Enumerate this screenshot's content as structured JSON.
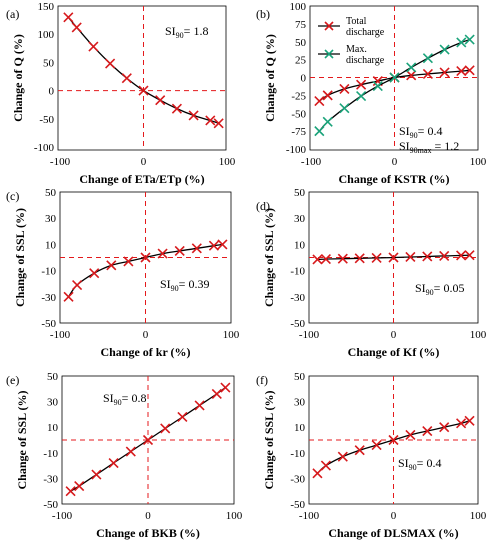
{
  "chart_data": [
    {
      "id": "a",
      "panel_label": "(a)",
      "type": "line",
      "xlabel": "Change of ETa/ETp (%)",
      "ylabel": "Change of Q (%)",
      "xlim": [
        -100,
        100
      ],
      "ylim": [
        -100,
        150
      ],
      "x_ticks": [
        "-100",
        "0",
        "100"
      ],
      "y_ticks": [
        "150",
        "100",
        "50",
        "0",
        "-50",
        "-100"
      ],
      "annotations": [
        {
          "text": "SI",
          "sub": "90",
          "rest": "= 1.8"
        }
      ],
      "series": [
        {
          "marker_color": "#d7191c",
          "line_color": "#000000",
          "x": [
            -90,
            -80,
            -60,
            -40,
            -20,
            0,
            20,
            40,
            60,
            80,
            90
          ],
          "y": [
            130,
            112,
            78,
            48,
            22,
            0,
            -17,
            -32,
            -44,
            -53,
            -58
          ]
        }
      ]
    },
    {
      "id": "b",
      "panel_label": "(b)",
      "type": "line",
      "xlabel": "Change of KSTR (%)",
      "ylabel": "Change of Q (%)",
      "xlim": [
        -100,
        100
      ],
      "ylim": [
        -100,
        100
      ],
      "x_ticks": [
        "-100",
        "0",
        "100"
      ],
      "y_ticks": [
        "100",
        "75",
        "50",
        "25",
        "0",
        "-25",
        "-50",
        "-75",
        "-100"
      ],
      "annotations": [
        {
          "text": "SI",
          "sub": "90",
          "rest": "= 0.4"
        },
        {
          "text": "SI",
          "sub": "90max",
          "rest": " = 1.2"
        }
      ],
      "legend": [
        "Total\ndischarge",
        "Max.\ndischarge"
      ],
      "series": [
        {
          "name": "Total discharge",
          "marker_color": "#d7191c",
          "line_color": "#000000",
          "x": [
            -90,
            -80,
            -60,
            -40,
            -20,
            0,
            20,
            40,
            60,
            80,
            90
          ],
          "y": [
            -33,
            -25,
            -16,
            -10,
            -5,
            0,
            3,
            5,
            7,
            9,
            10
          ]
        },
        {
          "name": "Max. discharge",
          "marker_color": "#1aa37a",
          "line_color": "#000000",
          "x": [
            -90,
            -80,
            -60,
            -40,
            -20,
            0,
            20,
            40,
            60,
            80,
            90
          ],
          "y": [
            -75,
            -62,
            -43,
            -26,
            -12,
            0,
            14,
            27,
            39,
            49,
            53
          ]
        }
      ]
    },
    {
      "id": "c",
      "panel_label": "(c)",
      "type": "line",
      "xlabel": "Change of kr (%)",
      "ylabel": "Change of SSL (%)",
      "xlim": [
        -100,
        100
      ],
      "ylim": [
        -50,
        50
      ],
      "x_ticks": [
        "-100",
        "0",
        "100"
      ],
      "y_ticks": [
        "50",
        "30",
        "10",
        "-10",
        "-30",
        "-50"
      ],
      "annotations": [
        {
          "text": "SI",
          "sub": "90",
          "rest": "= 0.39"
        }
      ],
      "series": [
        {
          "marker_color": "#d7191c",
          "line_color": "#000000",
          "x": [
            -90,
            -80,
            -60,
            -40,
            -20,
            0,
            20,
            40,
            60,
            80,
            90
          ],
          "y": [
            -30,
            -21,
            -12,
            -6,
            -3,
            0,
            3,
            5,
            7,
            9,
            10
          ]
        }
      ]
    },
    {
      "id": "d",
      "panel_label": "(d)",
      "type": "line",
      "xlabel": "Change of Kf (%)",
      "ylabel": "Change of SSL (%)",
      "xlim": [
        -100,
        100
      ],
      "ylim": [
        -50,
        50
      ],
      "x_ticks": [
        "-100",
        "0",
        "100"
      ],
      "y_ticks": [
        "50",
        "30",
        "10",
        "-10",
        "-30",
        "-50"
      ],
      "annotations": [
        {
          "text": "SI",
          "sub": "90",
          "rest": "= 0.05"
        }
      ],
      "series": [
        {
          "marker_color": "#d7191c",
          "line_color": "#000000",
          "x": [
            -90,
            -80,
            -60,
            -40,
            -20,
            0,
            20,
            40,
            60,
            80,
            90
          ],
          "y": [
            -1.5,
            -1.2,
            -0.9,
            -0.6,
            -0.3,
            0,
            0.4,
            0.8,
            1.2,
            1.6,
            1.8
          ]
        }
      ]
    },
    {
      "id": "e",
      "panel_label": "(e)",
      "type": "line",
      "xlabel": "Change of BKB (%)",
      "ylabel": "Change of SSL (%)",
      "xlim": [
        -100,
        100
      ],
      "ylim": [
        -50,
        50
      ],
      "x_ticks": [
        "-100",
        "0",
        "100"
      ],
      "y_ticks": [
        "50",
        "30",
        "10",
        "-10",
        "-30",
        "-50"
      ],
      "annotations": [
        {
          "text": "SI",
          "sub": "90",
          "rest": "= 0.8"
        }
      ],
      "series": [
        {
          "marker_color": "#d7191c",
          "line_color": "#000000",
          "x": [
            -90,
            -80,
            -60,
            -40,
            -20,
            0,
            20,
            40,
            60,
            80,
            90
          ],
          "y": [
            -40,
            -36,
            -27,
            -18,
            -9,
            0,
            9,
            18,
            27,
            36,
            41
          ]
        }
      ]
    },
    {
      "id": "f",
      "panel_label": "(f)",
      "type": "line",
      "xlabel": "Change of DLSMAX (%)",
      "ylabel": "Change of SSL (%)",
      "xlim": [
        -100,
        100
      ],
      "ylim": [
        -50,
        50
      ],
      "x_ticks": [
        "-100",
        "0",
        "100"
      ],
      "y_ticks": [
        "50",
        "30",
        "10",
        "-10",
        "-30",
        "-50"
      ],
      "annotations": [
        {
          "text": "SI",
          "sub": "90",
          "rest": "= 0.4"
        }
      ],
      "series": [
        {
          "marker_color": "#d7191c",
          "line_color": "#000000",
          "x": [
            -90,
            -80,
            -60,
            -40,
            -20,
            0,
            20,
            40,
            60,
            80,
            90
          ],
          "y": [
            -26,
            -20,
            -13,
            -8,
            -4,
            0,
            4,
            7,
            10,
            13,
            15
          ]
        }
      ]
    }
  ]
}
